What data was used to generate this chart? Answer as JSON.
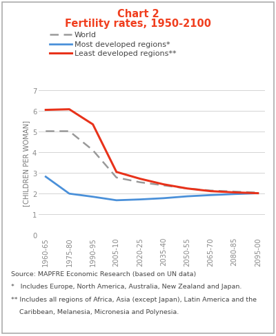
{
  "title_line1": "Chart 2",
  "title_line2": "Fertility rates, 1950-2100",
  "title_color": "#F03E1E",
  "xlabel_categories": [
    "1960-65",
    "1975-80",
    "1990-95",
    "2005-10",
    "2020-25",
    "2035-40",
    "2050-55",
    "2065-70",
    "2080-85",
    "2095-00"
  ],
  "ylabel": "[CHILDREN PER WOMAN]",
  "ylim": [
    0,
    7
  ],
  "yticks": [
    0,
    1,
    2,
    3,
    4,
    5,
    6,
    7
  ],
  "world": [
    5.02,
    5.02,
    4.1,
    2.78,
    2.55,
    2.4,
    2.25,
    2.15,
    2.1,
    2.05
  ],
  "most_developed": [
    2.82,
    2.0,
    1.85,
    1.68,
    1.72,
    1.78,
    1.87,
    1.93,
    1.98,
    2.02
  ],
  "least_developed": [
    6.05,
    6.08,
    5.35,
    3.05,
    2.72,
    2.45,
    2.25,
    2.12,
    2.06,
    2.02
  ],
  "world_color": "#999999",
  "most_developed_color": "#4A90D9",
  "least_developed_color": "#E8321A",
  "legend_world": "World",
  "legend_most": "Most developed regions*",
  "legend_least": "Least developed regions**",
  "source_line1": "Source: MAPFRE Economic Research (based on UN data)",
  "source_line2": "*   Includes Europe, North America, Australia, New Zealand and Japan.",
  "source_line3": "** Includes all regions of Africa, Asia (except Japan), Latin America and the",
  "source_line4": "    Caribbean, Melanesia, Micronesia and Polynesia.",
  "border_color": "#aaaaaa",
  "grid_color": "#cccccc",
  "tick_label_color": "#888888",
  "ylabel_color": "#777777",
  "source_fontsize": 6.8,
  "axis_label_fontsize": 7.2,
  "title_fontsize": 10.5,
  "legend_fontsize": 8.0
}
